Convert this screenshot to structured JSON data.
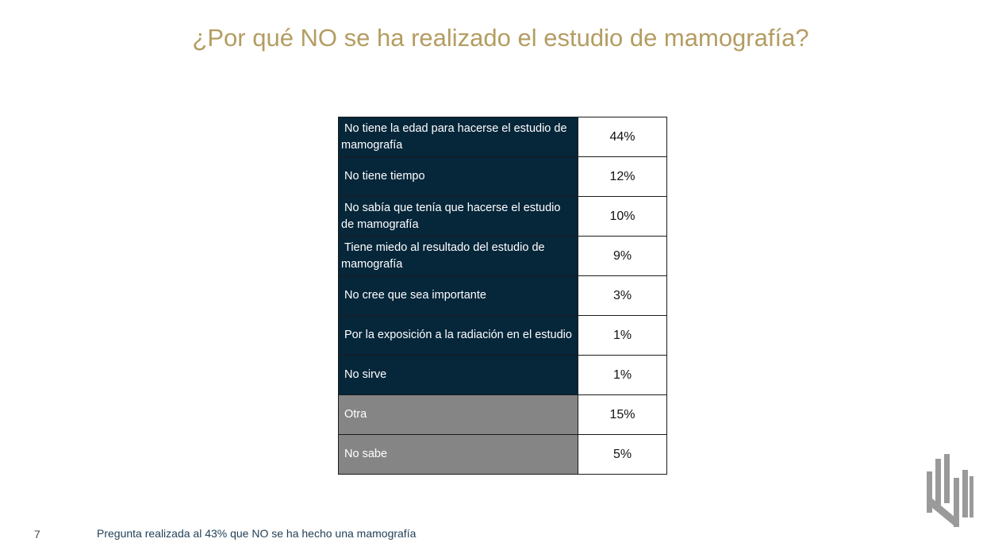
{
  "title": "¿Por qué NO se ha realizado el estudio de mamografía?",
  "table": {
    "rows": [
      {
        "label": "No tiene la edad para hacerse el estudio de mamografía",
        "value": "44%",
        "style": "dark"
      },
      {
        "label": "No tiene tiempo",
        "value": "12%",
        "style": "dark"
      },
      {
        "label": "No sabía que tenía que hacerse el estudio de mamografía",
        "value": "10%",
        "style": "dark"
      },
      {
        "label": "Tiene miedo al resultado del estudio de mamografía",
        "value": "9%",
        "style": "dark"
      },
      {
        "label": "No cree que sea importante",
        "value": "3%",
        "style": "dark"
      },
      {
        "label": "Por la exposición a la radiación en el estudio",
        "value": "1%",
        "style": "dark"
      },
      {
        "label": "No sirve",
        "value": "1%",
        "style": "dark"
      },
      {
        "label": "Otra",
        "value": "15%",
        "style": "gray"
      },
      {
        "label": "No sabe",
        "value": "5%",
        "style": "gray"
      }
    ]
  },
  "footer": {
    "page_number": "7",
    "note": "Pregunta realizada al 43% que NO se ha hecho una mamografía"
  },
  "colors": {
    "title": "#b49d62",
    "row_dark": "#06263a",
    "row_gray": "#858585",
    "logo": "#9a9a9a"
  }
}
